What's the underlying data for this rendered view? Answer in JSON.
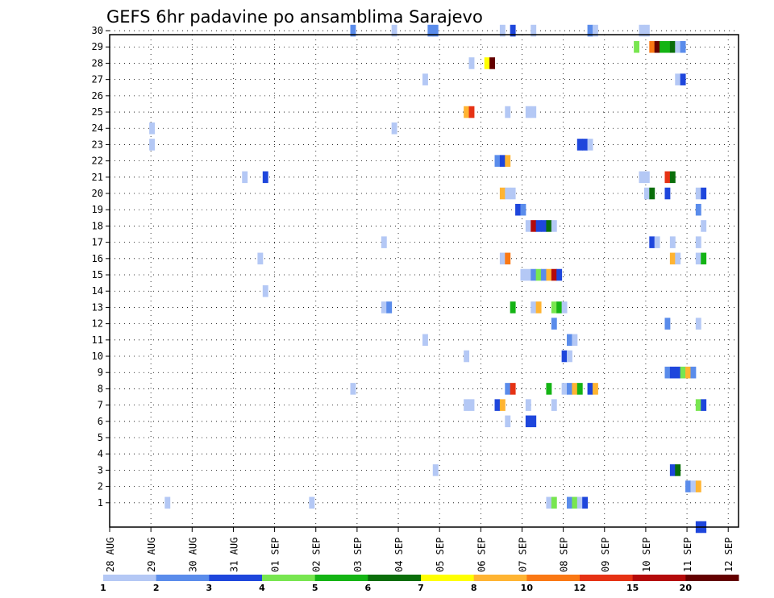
{
  "chart_data": {
    "type": "heatmap",
    "title": "GEFS 6hr padavine po ansamblima Sarajevo",
    "xlabel": "",
    "ylabel": "",
    "x_ticks": [
      "28 AUG",
      "29 AUG",
      "30 AUG",
      "31 AUG",
      "01 SEP",
      "02 SEP",
      "03 SEP",
      "04 SEP",
      "05 SEP",
      "06 SEP",
      "07 SEP",
      "08 SEP",
      "09 SEP",
      "10 SEP",
      "11 SEP",
      "12 SEP"
    ],
    "y_ticks": [
      "1",
      "2",
      "3",
      "4",
      "5",
      "6",
      "7",
      "8",
      "9",
      "10",
      "11",
      "12",
      "13",
      "14",
      "15",
      "16",
      "17",
      "18",
      "19",
      "20",
      "21",
      "22",
      "23",
      "24",
      "25",
      "26",
      "27",
      "28",
      "29",
      "30"
    ],
    "x_unit": "6-hour step from 28 AUG 00Z",
    "xlim": [
      0,
      61
    ],
    "ylim": [
      0,
      30
    ],
    "grid": true,
    "legend_position": "bottom",
    "levels": [
      {
        "label": "1",
        "color": "#b4c8f5"
      },
      {
        "label": "2",
        "color": "#5a8ceb"
      },
      {
        "label": "3",
        "color": "#1e46dc"
      },
      {
        "label": "4",
        "color": "#78e650"
      },
      {
        "label": "5",
        "color": "#14b414"
      },
      {
        "label": "6",
        "color": "#0a6e0a"
      },
      {
        "label": "7",
        "color": "#ffff00"
      },
      {
        "label": "8",
        "color": "#ffb432"
      },
      {
        "label": "10",
        "color": "#fa7814"
      },
      {
        "label": "12",
        "color": "#e63214"
      },
      {
        "label": "15",
        "color": "#b40a0a"
      },
      {
        "label": "20",
        "color": "#640000"
      }
    ],
    "cells": [
      [
        11,
        1,
        1
      ],
      [
        39,
        1,
        1
      ],
      [
        47,
        30,
        2
      ],
      [
        55,
        30,
        1
      ],
      [
        62,
        30,
        2
      ],
      [
        63,
        30,
        2
      ],
      [
        76,
        30,
        1
      ],
      [
        78,
        30,
        3
      ],
      [
        82,
        30,
        1
      ],
      [
        93,
        30,
        2
      ],
      [
        94,
        30,
        1
      ],
      [
        103,
        30,
        1
      ],
      [
        104,
        30,
        1
      ],
      [
        102,
        29,
        4
      ],
      [
        105,
        29,
        10
      ],
      [
        106,
        29,
        20
      ],
      [
        107,
        29,
        5
      ],
      [
        108,
        29,
        5
      ],
      [
        109,
        29,
        6
      ],
      [
        110,
        29,
        1
      ],
      [
        111,
        29,
        2
      ],
      [
        70,
        28,
        1
      ],
      [
        73,
        28,
        7
      ],
      [
        74,
        28,
        20
      ],
      [
        61,
        27,
        1
      ],
      [
        110,
        27,
        1
      ],
      [
        111,
        27,
        3
      ],
      [
        69,
        25,
        8
      ],
      [
        70,
        25,
        12
      ],
      [
        77,
        25,
        1
      ],
      [
        81,
        25,
        1
      ],
      [
        82,
        25,
        1
      ],
      [
        8,
        24,
        1
      ],
      [
        55,
        24,
        1
      ],
      [
        8,
        23,
        1
      ],
      [
        91,
        23,
        3
      ],
      [
        92,
        23,
        3
      ],
      [
        93,
        23,
        1
      ],
      [
        75,
        22,
        2
      ],
      [
        76,
        22,
        3
      ],
      [
        77,
        22,
        8
      ],
      [
        26,
        21,
        1
      ],
      [
        30,
        21,
        3
      ],
      [
        103,
        21,
        1
      ],
      [
        104,
        21,
        1
      ],
      [
        108,
        21,
        12
      ],
      [
        109,
        21,
        6
      ],
      [
        76,
        20,
        8
      ],
      [
        77,
        20,
        1
      ],
      [
        78,
        20,
        1
      ],
      [
        104,
        20,
        1
      ],
      [
        105,
        20,
        6
      ],
      [
        108,
        20,
        3
      ],
      [
        114,
        20,
        1
      ],
      [
        115,
        20,
        3
      ],
      [
        79,
        19,
        3
      ],
      [
        80,
        19,
        2
      ],
      [
        114,
        19,
        2
      ],
      [
        81,
        18,
        1
      ],
      [
        82,
        18,
        15
      ],
      [
        83,
        18,
        3
      ],
      [
        84,
        18,
        3
      ],
      [
        85,
        18,
        6
      ],
      [
        86,
        18,
        1
      ],
      [
        115,
        18,
        1
      ],
      [
        53,
        17,
        1
      ],
      [
        105,
        17,
        3
      ],
      [
        106,
        17,
        1
      ],
      [
        109,
        17,
        1
      ],
      [
        114,
        17,
        1
      ],
      [
        29,
        16,
        1
      ],
      [
        76,
        16,
        1
      ],
      [
        77,
        16,
        10
      ],
      [
        109,
        16,
        8
      ],
      [
        110,
        16,
        1
      ],
      [
        114,
        16,
        1
      ],
      [
        115,
        16,
        5
      ],
      [
        80,
        15,
        1
      ],
      [
        81,
        15,
        1
      ],
      [
        82,
        15,
        2
      ],
      [
        83,
        15,
        4
      ],
      [
        84,
        15,
        2
      ],
      [
        85,
        15,
        8
      ],
      [
        86,
        15,
        15
      ],
      [
        87,
        15,
        3
      ],
      [
        30,
        14,
        1
      ],
      [
        53,
        13,
        1
      ],
      [
        54,
        13,
        2
      ],
      [
        78,
        13,
        5
      ],
      [
        82,
        13,
        1
      ],
      [
        83,
        13,
        8
      ],
      [
        86,
        13,
        4
      ],
      [
        87,
        13,
        5
      ],
      [
        88,
        13,
        1
      ],
      [
        86,
        12,
        2
      ],
      [
        108,
        12,
        2
      ],
      [
        114,
        12,
        1
      ],
      [
        89,
        11,
        2
      ],
      [
        90,
        11,
        1
      ],
      [
        61,
        11,
        1
      ],
      [
        69,
        10,
        1
      ],
      [
        88,
        10,
        3
      ],
      [
        89,
        10,
        1
      ],
      [
        108,
        9,
        2
      ],
      [
        109,
        9,
        3
      ],
      [
        110,
        9,
        3
      ],
      [
        111,
        9,
        4
      ],
      [
        112,
        9,
        8
      ],
      [
        113,
        9,
        2
      ],
      [
        47,
        8,
        1
      ],
      [
        77,
        8,
        2
      ],
      [
        78,
        8,
        12
      ],
      [
        85,
        8,
        5
      ],
      [
        88,
        8,
        1
      ],
      [
        89,
        8,
        2
      ],
      [
        90,
        8,
        8
      ],
      [
        91,
        8,
        5
      ],
      [
        93,
        8,
        3
      ],
      [
        94,
        8,
        8
      ],
      [
        69,
        7,
        1
      ],
      [
        70,
        7,
        1
      ],
      [
        75,
        7,
        3
      ],
      [
        76,
        7,
        8
      ],
      [
        81,
        7,
        1
      ],
      [
        86,
        7,
        1
      ],
      [
        114,
        7,
        4
      ],
      [
        115,
        7,
        3
      ],
      [
        77,
        6,
        1
      ],
      [
        81,
        6,
        3
      ],
      [
        82,
        6,
        3
      ],
      [
        63,
        3,
        1
      ],
      [
        109,
        3,
        3
      ],
      [
        110,
        3,
        6
      ],
      [
        112,
        2,
        2
      ],
      [
        113,
        2,
        1
      ],
      [
        114,
        2,
        8
      ],
      [
        85,
        1,
        1
      ],
      [
        86,
        1,
        4
      ],
      [
        89,
        1,
        2
      ],
      [
        90,
        1,
        4
      ],
      [
        91,
        1,
        1
      ],
      [
        92,
        1,
        3
      ],
      [
        114,
        0,
        3
      ],
      [
        115,
        0,
        3
      ]
    ]
  }
}
